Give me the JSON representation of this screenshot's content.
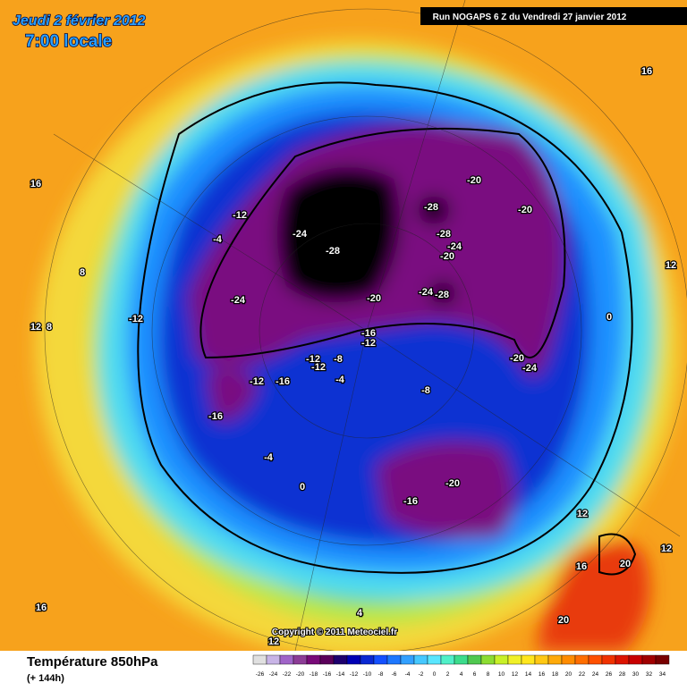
{
  "header": {
    "date": "Jeudi 2 février 2012",
    "time": "7:00 locale",
    "run": "Run NOGAPS 6 Z du Vendredi 27 janvier 2012"
  },
  "map": {
    "copyright": "Copyright © 2011 Meteociel.fr",
    "contour_labels": [
      -12,
      -4,
      -28,
      -24,
      -28,
      -20,
      -20,
      -28,
      -24,
      -20,
      -24,
      -28,
      -20,
      -24,
      -12,
      -16,
      -12,
      -12,
      -8,
      -12,
      -20,
      -24,
      -12,
      -16,
      -4,
      -8,
      -16,
      -4,
      0,
      -20,
      -16,
      0,
      12,
      16,
      16,
      8,
      12,
      8,
      12,
      12,
      20,
      16,
      16,
      4,
      20,
      12
    ]
  },
  "footer": {
    "title": "Température 850hPa",
    "lead": "(+ 144h)"
  },
  "legend": {
    "ticks": [
      -26,
      -24,
      -22,
      -20,
      -18,
      -16,
      -14,
      -12,
      -10,
      -8,
      -6,
      -4,
      -2,
      0,
      2,
      4,
      6,
      8,
      10,
      12,
      14,
      16,
      18,
      20,
      22,
      24,
      26,
      28,
      30,
      32,
      34
    ],
    "colors": [
      "#e0e0e0",
      "#c8b4e6",
      "#a064c8",
      "#8c3c96",
      "#780a78",
      "#5a005a",
      "#1e006e",
      "#0000b4",
      "#0a28d2",
      "#1450ff",
      "#1e78ff",
      "#32a0ff",
      "#46c8ff",
      "#5ae6ff",
      "#50f0c8",
      "#3cdc8c",
      "#50c850",
      "#8cdc32",
      "#c8f028",
      "#f0f028",
      "#ffe61e",
      "#ffc814",
      "#ffaa0a",
      "#ff8c00",
      "#ff6e00",
      "#ff5000",
      "#f03200",
      "#dc1400",
      "#c80000",
      "#a00000",
      "#780000"
    ]
  }
}
